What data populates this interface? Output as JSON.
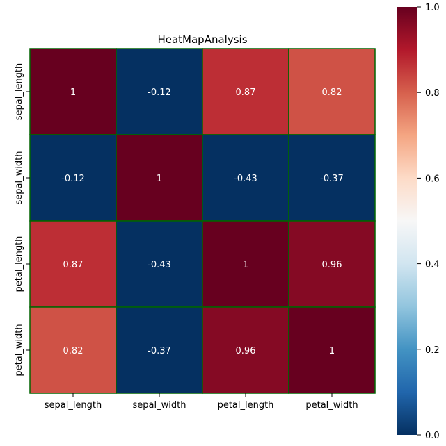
{
  "chart_data": {
    "type": "heatmap",
    "title": "HeatMapAnalysis",
    "xlabel": "",
    "ylabel": "",
    "x_categories": [
      "sepal_length",
      "sepal_width",
      "petal_length",
      "petal_width"
    ],
    "y_categories": [
      "sepal_length",
      "sepal_width",
      "petal_length",
      "petal_width"
    ],
    "values": [
      [
        1,
        -0.12,
        0.87,
        0.82
      ],
      [
        -0.12,
        1,
        -0.43,
        -0.37
      ],
      [
        0.87,
        -0.43,
        1,
        0.96
      ],
      [
        0.82,
        -0.37,
        0.96,
        1
      ]
    ],
    "colormap": "RdBu_r",
    "colorbar": {
      "vmin": 0.0,
      "vmax": 1.0,
      "ticks": [
        0.0,
        0.2,
        0.4,
        0.6,
        0.8,
        1.0
      ],
      "tick_labels": [
        "0.0",
        "0.2",
        "0.4",
        "0.6",
        "0.8",
        "1.0"
      ]
    },
    "annotations": true,
    "cell_border_color": "#006400",
    "annotation_color": "#ffffff"
  }
}
